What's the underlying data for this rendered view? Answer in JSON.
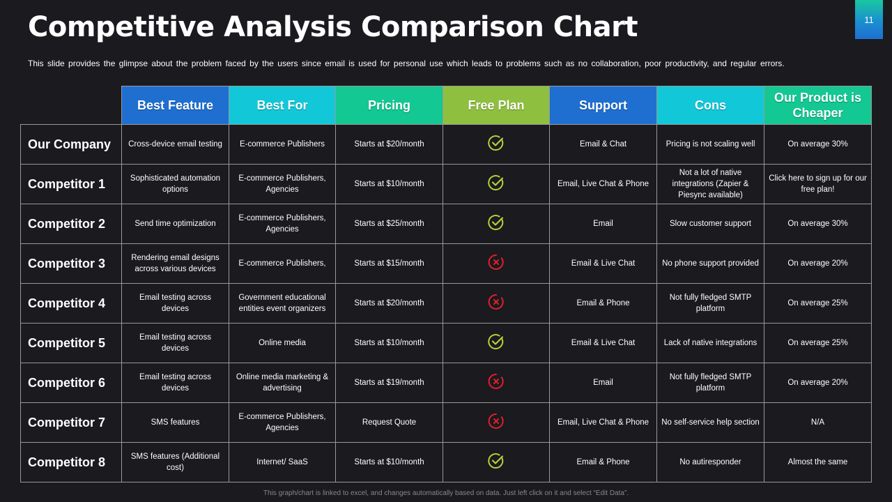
{
  "slide": {
    "title": "Competitive Analysis Comparison Chart",
    "page_number": "11",
    "subtitle": "This slide provides  the glimpse about the problem faced by the users since email is used for personal  use which leads to problems  such as no collaboration,  poor productivity,  and regular  errors.",
    "footer": "This graph/chart is linked to excel, and changes automatically based on data. Just left click on it and select “Edit Data”."
  },
  "colors": {
    "best_feature": "#1f6fd0",
    "best_for": "#12c8d8",
    "pricing": "#13c892",
    "free_plan": "#8fbf3f",
    "support": "#1f6fd0",
    "cons": "#12c8d8",
    "cheaper": "#13c892",
    "check": "#b5d13a",
    "cross": "#e0202a"
  },
  "table": {
    "headers": {
      "best_feature": "Best Feature",
      "best_for": "Best For",
      "pricing": "Pricing",
      "free_plan": "Free Plan",
      "support": "Support",
      "cons": "Cons",
      "cheaper": "Our Product is Cheaper"
    },
    "rows": [
      {
        "name": "Our Company",
        "best_feature": "Cross-device email testing",
        "best_for": "E-commerce  Publishers",
        "pricing": "Starts at $20/month",
        "free_plan": "check-icon",
        "support": "Email & Chat",
        "cons": "Pricing is not scaling well",
        "cheaper": "On average 30%"
      },
      {
        "name": "Competitor 1",
        "best_feature": "Sophisticated automation options",
        "best_for": "E-commerce  Publishers, Agencies",
        "pricing": "Starts at $10/month",
        "free_plan": "check-icon",
        "support": "Email, Live Chat & Phone",
        "cons": "Not a lot of native integrations (Zapier & Piesync available)",
        "cheaper": "Click here to sign up for our free plan!"
      },
      {
        "name": "Competitor 2",
        "best_feature": "Send time optimization",
        "best_for": "E-commerce  Publishers, Agencies",
        "pricing": "Starts at $25/month",
        "free_plan": "check-icon",
        "support": "Email",
        "cons": "Slow customer support",
        "cheaper": "On average 30%"
      },
      {
        "name": "Competitor 3",
        "best_feature": "Rendering email designs across various devices",
        "best_for": "E-commerce  Publishers,",
        "pricing": "Starts at $15/month",
        "free_plan": "cross-icon",
        "support": "Email & Live Chat",
        "cons": "No phone support provided",
        "cheaper": "On average 20%"
      },
      {
        "name": "Competitor 4",
        "best_feature": "Email testing across devices",
        "best_for": "Government educational entities event organizers",
        "pricing": "Starts at $20/month",
        "free_plan": "cross-icon",
        "support": "Email & Phone",
        "cons": "Not fully fledged SMTP platform",
        "cheaper": "On average 25%"
      },
      {
        "name": "Competitor 5",
        "best_feature": "Email testing across devices",
        "best_for": "Online media",
        "pricing": "Starts at $10/month",
        "free_plan": "check-icon",
        "support": "Email & Live Chat",
        "cons": "Lack of native integrations",
        "cheaper": "On average 25%"
      },
      {
        "name": "Competitor 6",
        "best_feature": "Email testing across devices",
        "best_for": "Online media marketing & advertising",
        "pricing": "Starts at $19/month",
        "free_plan": "cross-icon",
        "support": "Email",
        "cons": "Not fully fledged SMTP platform",
        "cheaper": "On average 20%"
      },
      {
        "name": "Competitor 7",
        "best_feature": "SMS features",
        "best_for": "E-commerce  Publishers, Agencies",
        "pricing": "Request Quote",
        "free_plan": "cross-icon",
        "support": "Email, Live Chat & Phone",
        "cons": "No self-service help section",
        "cheaper": "N/A"
      },
      {
        "name": "Competitor 8",
        "best_feature": "SMS features (Additional cost)",
        "best_for": "Internet/ SaaS",
        "pricing": "Starts at $10/month",
        "free_plan": "check-icon",
        "support": "Email & Phone",
        "cons": "No autiresponder",
        "cheaper": "Almost the same"
      }
    ]
  }
}
